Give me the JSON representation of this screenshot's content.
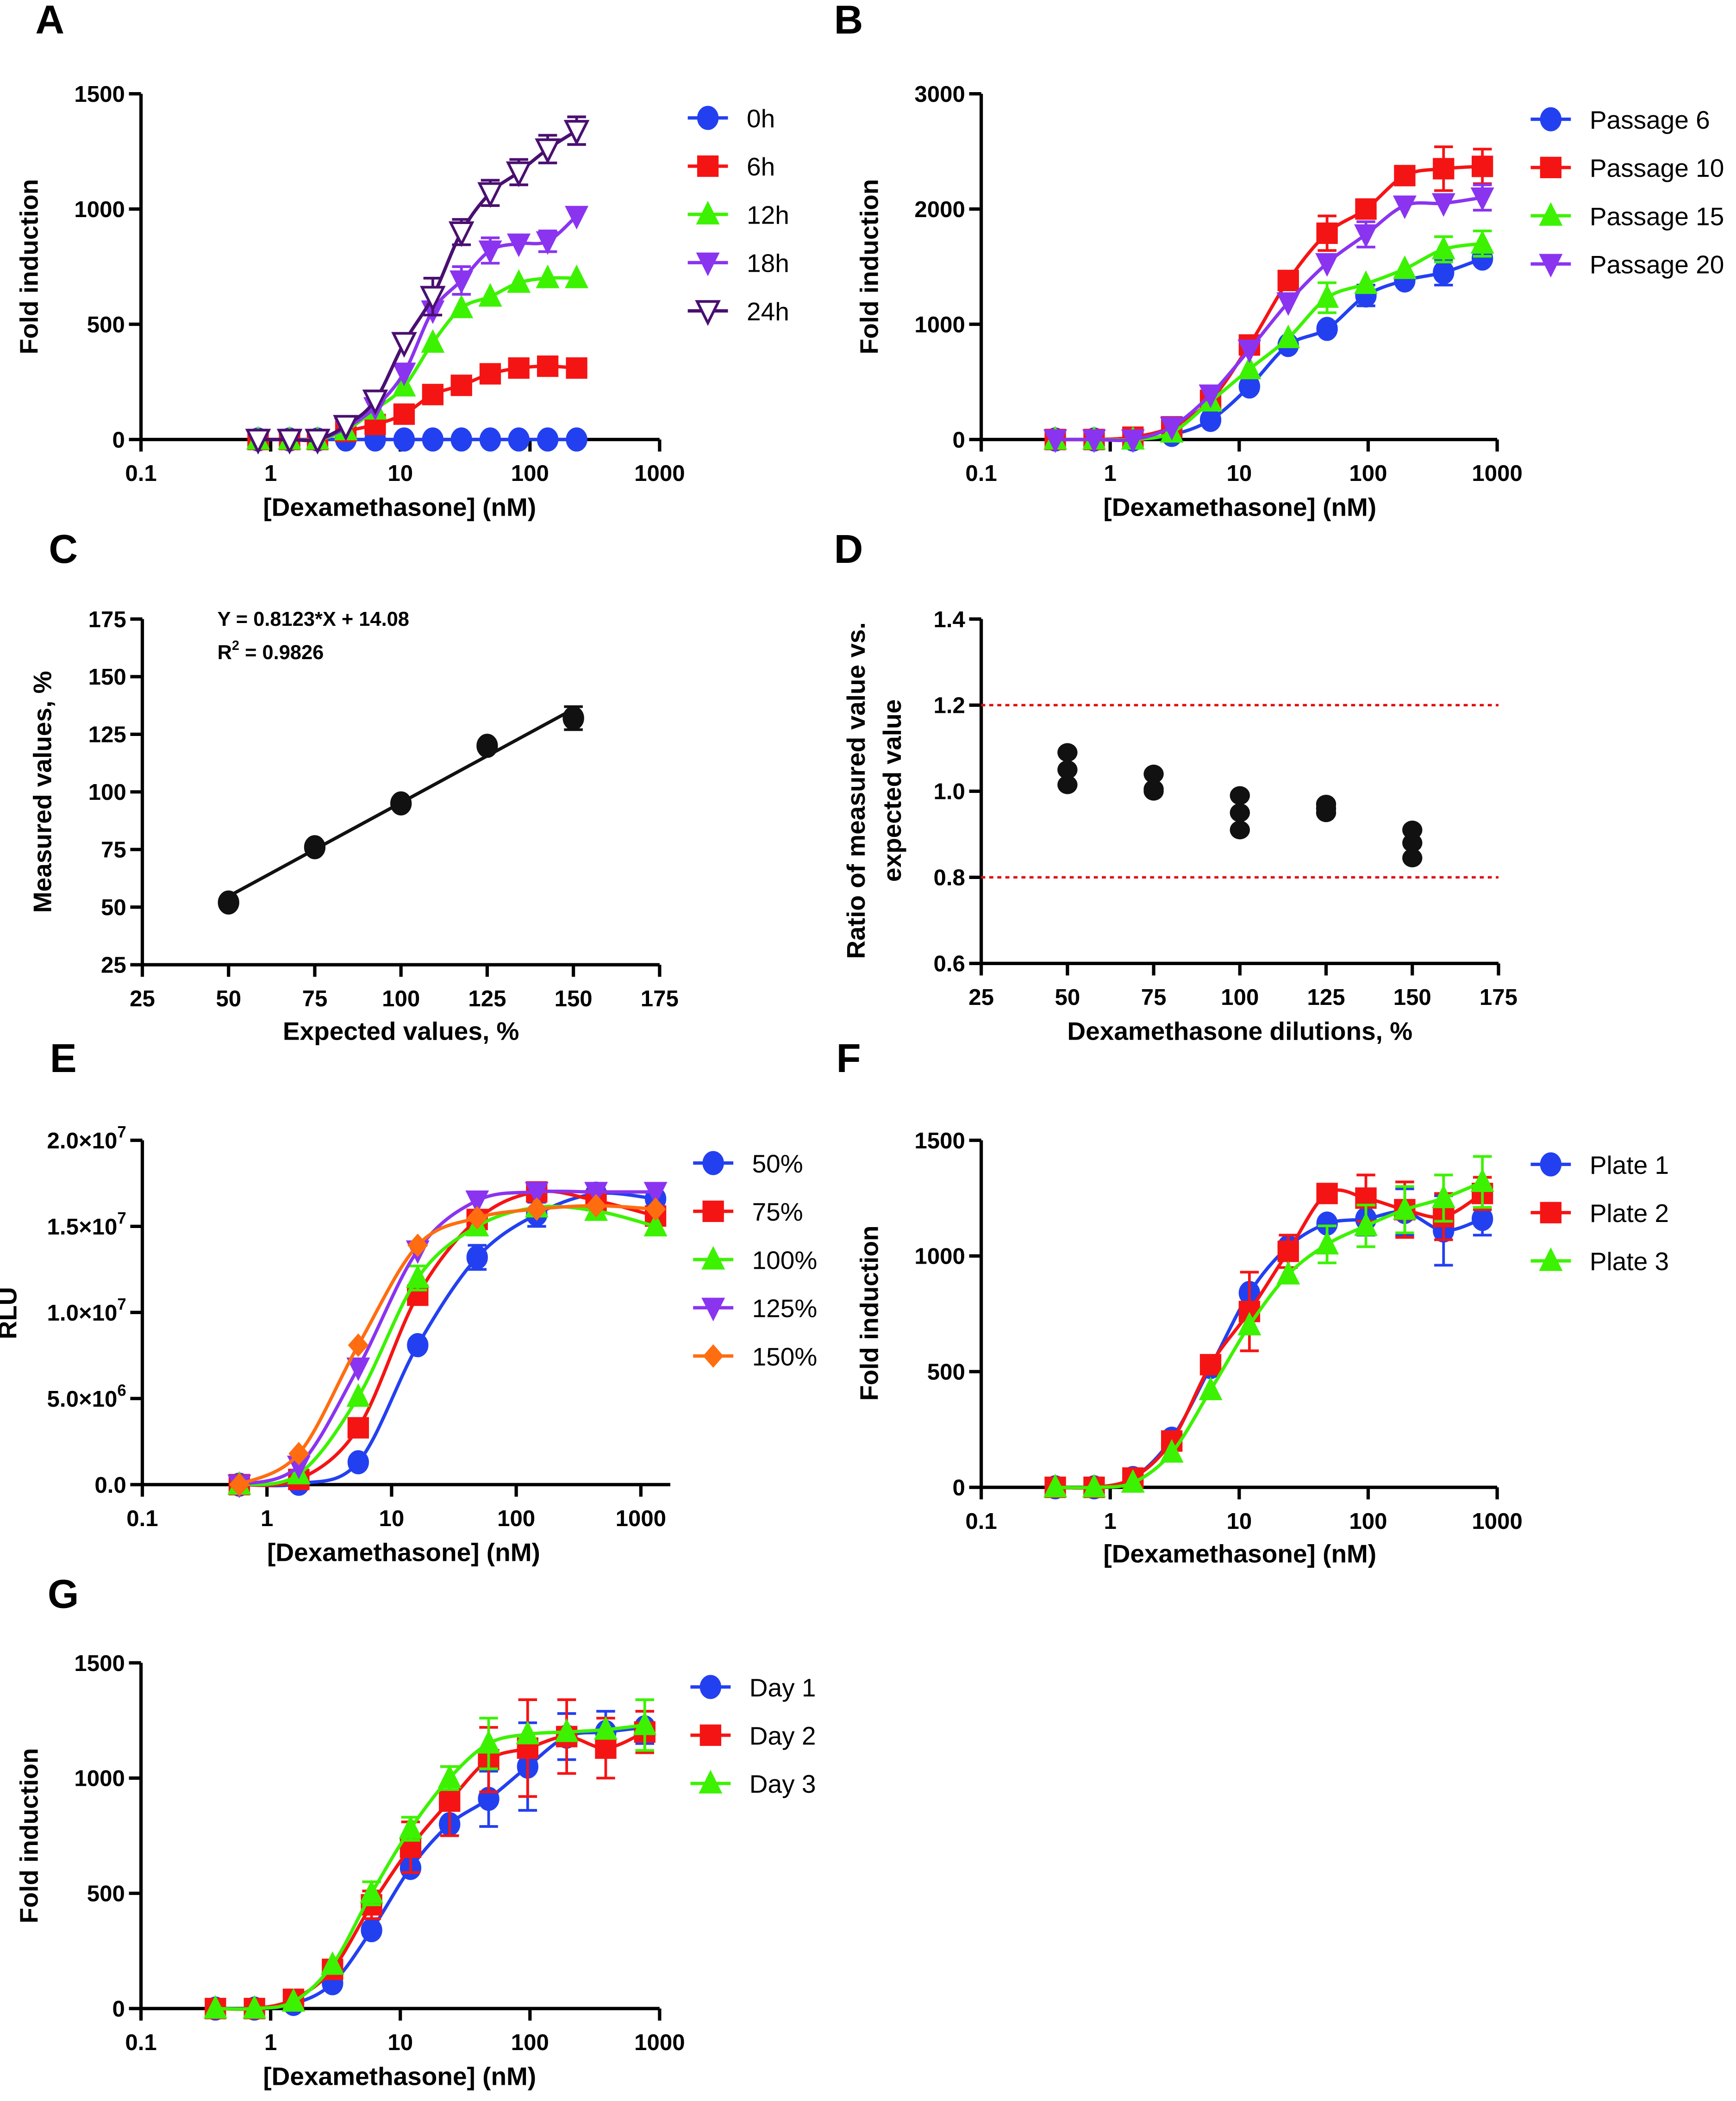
{
  "colors": {
    "blue": "#2340f0",
    "red": "#f51414",
    "green": "#3cf200",
    "purple": "#8a34f0",
    "dark_purple": "#4a0f70",
    "orange": "#ff6d10",
    "black": "#111111",
    "ref_line": "#e01010"
  },
  "chart_data": [
    {
      "panel_label": "A",
      "type": "line",
      "xscale": "log",
      "xlim": [
        0.1,
        1000
      ],
      "ylim": [
        0,
        1500
      ],
      "xlabel": "[Dexamethasone] (nM)",
      "ylabel": "Fold induction",
      "xticks": [
        0.1,
        1,
        10,
        100,
        1000
      ],
      "xtick_labels": [
        "0.1",
        "1",
        "10",
        "100",
        "1000"
      ],
      "yticks": [
        0,
        500,
        1000,
        1500
      ],
      "ytick_labels": [
        "0",
        "500",
        "1000",
        "1500"
      ],
      "legend": "right",
      "x": [
        0.8,
        1.4,
        2.3,
        3.8,
        6.4,
        10.7,
        17.8,
        29.6,
        49.4,
        82,
        137,
        229
      ],
      "series": [
        {
          "name": "0h",
          "color": "blue",
          "marker": "circle",
          "values": [
            0,
            0,
            0,
            0,
            0,
            0,
            0,
            0,
            0,
            0,
            0,
            0
          ]
        },
        {
          "name": "6h",
          "color": "red",
          "marker": "square",
          "values": [
            0,
            0,
            0,
            35,
            65,
            110,
            195,
            235,
            285,
            310,
            318,
            310
          ]
        },
        {
          "name": "12h",
          "color": "green",
          "marker": "triangle-up",
          "values": [
            0,
            0,
            0,
            40,
            130,
            230,
            420,
            570,
            620,
            680,
            700,
            700
          ]
        },
        {
          "name": "18h",
          "color": "purple",
          "marker": "triangle-down",
          "values": [
            0,
            0,
            0,
            50,
            140,
            290,
            560,
            690,
            820,
            850,
            860,
            970
          ],
          "error": [
            0,
            0,
            0,
            0,
            0,
            0,
            0,
            60,
            55,
            0,
            45,
            0
          ]
        },
        {
          "name": "24h",
          "color": "dark_purple",
          "marker": "triangle-down-open",
          "values": [
            0,
            0,
            0,
            60,
            170,
            420,
            620,
            900,
            1070,
            1160,
            1260,
            1340
          ],
          "error": [
            0,
            0,
            0,
            0,
            0,
            0,
            80,
            55,
            55,
            55,
            60,
            60
          ]
        }
      ]
    },
    {
      "panel_label": "B",
      "type": "line",
      "xscale": "log",
      "xlim": [
        0.1,
        1000
      ],
      "ylim": [
        0,
        3000
      ],
      "xlabel": "[Dexamethasone] (nM)",
      "ylabel": "Fold induction",
      "xticks": [
        0.1,
        1,
        10,
        100,
        1000
      ],
      "xtick_labels": [
        "0.1",
        "1",
        "10",
        "100",
        "1000"
      ],
      "yticks": [
        0,
        1000,
        2000,
        3000
      ],
      "ytick_labels": [
        "0",
        "1000",
        "2000",
        "3000"
      ],
      "legend": "right",
      "x": [
        0.375,
        0.75,
        1.5,
        3,
        6,
        12,
        24,
        48,
        96,
        192,
        384,
        768
      ],
      "series": [
        {
          "name": "Passage 6",
          "color": "blue",
          "marker": "circle",
          "values": [
            0,
            0,
            0,
            40,
            170,
            460,
            820,
            960,
            1250,
            1380,
            1450,
            1570
          ],
          "error": [
            0,
            0,
            0,
            0,
            0,
            0,
            0,
            0,
            90,
            0,
            110,
            0
          ]
        },
        {
          "name": "Passage 10",
          "color": "red",
          "marker": "square",
          "values": [
            0,
            0,
            20,
            110,
            340,
            820,
            1380,
            1790,
            2000,
            2290,
            2350,
            2370
          ],
          "error": [
            0,
            0,
            0,
            0,
            0,
            60,
            0,
            150,
            80,
            0,
            190,
            150
          ]
        },
        {
          "name": "Passage 15",
          "color": "green",
          "marker": "triangle-up",
          "values": [
            0,
            0,
            0,
            60,
            330,
            610,
            880,
            1230,
            1350,
            1480,
            1650,
            1700
          ],
          "error": [
            0,
            0,
            0,
            0,
            0,
            0,
            0,
            130,
            0,
            0,
            110,
            110
          ]
        },
        {
          "name": "Passage 20",
          "color": "purple",
          "marker": "triangle-down",
          "values": [
            0,
            0,
            0,
            110,
            390,
            780,
            1190,
            1530,
            1780,
            2030,
            2050,
            2100
          ],
          "error": [
            0,
            0,
            0,
            0,
            0,
            0,
            0,
            0,
            110,
            0,
            0,
            110
          ]
        }
      ]
    },
    {
      "panel_label": "C",
      "type": "scatter",
      "xlim": [
        25,
        175
      ],
      "ylim": [
        25,
        175
      ],
      "xlabel": "Expected values, %",
      "ylabel": "Measured values, %",
      "xticks": [
        25,
        50,
        75,
        100,
        125,
        150,
        175
      ],
      "xtick_labels": [
        "25",
        "50",
        "75",
        "100",
        "125",
        "150",
        "175"
      ],
      "yticks": [
        25,
        50,
        75,
        100,
        125,
        150,
        175
      ],
      "ytick_labels": [
        "25",
        "50",
        "75",
        "100",
        "125",
        "150",
        "175"
      ],
      "x": [
        50,
        75,
        100,
        125,
        150
      ],
      "series": [
        {
          "color": "black",
          "marker": "circle",
          "values": [
            52,
            76,
            95,
            120,
            132
          ],
          "error": [
            0,
            0,
            0,
            0,
            5
          ]
        }
      ],
      "fit": {
        "slope": 0.8123,
        "intercept": 14.08,
        "x_range": [
          50,
          150
        ]
      },
      "annotations": {
        "equation": "Y = 0.8123*X + 14.08",
        "r2_prefix": "R",
        "r2_sup": "2",
        "r2_value": " = 0.9826"
      }
    },
    {
      "panel_label": "D",
      "type": "scatter",
      "xlim": [
        25,
        175
      ],
      "ylim": [
        0.6,
        1.4
      ],
      "xlabel": "Dexamethasone dilutions, %",
      "ylabel_lines": [
        "Ratio of measured value vs.",
        "expected value"
      ],
      "xticks": [
        25,
        50,
        75,
        100,
        125,
        150,
        175
      ],
      "xtick_labels": [
        "25",
        "50",
        "75",
        "100",
        "125",
        "150",
        "175"
      ],
      "yticks": [
        0.6,
        0.8,
        1.0,
        1.2,
        1.4
      ],
      "ytick_labels": [
        "0.6",
        "0.8",
        "1.0",
        "1.2",
        "1.4"
      ],
      "points": [
        {
          "x": 50,
          "y": 1.09
        },
        {
          "x": 50,
          "y": 1.05
        },
        {
          "x": 50,
          "y": 1.015
        },
        {
          "x": 75,
          "y": 1.04
        },
        {
          "x": 75,
          "y": 1.005
        },
        {
          "x": 75,
          "y": 1.0
        },
        {
          "x": 100,
          "y": 0.99
        },
        {
          "x": 100,
          "y": 0.95
        },
        {
          "x": 100,
          "y": 0.91
        },
        {
          "x": 125,
          "y": 0.97
        },
        {
          "x": 125,
          "y": 0.96
        },
        {
          "x": 125,
          "y": 0.95
        },
        {
          "x": 150,
          "y": 0.91
        },
        {
          "x": 150,
          "y": 0.88
        },
        {
          "x": 150,
          "y": 0.845
        }
      ],
      "reference_lines": [
        0.8,
        1.2
      ]
    },
    {
      "panel_label": "E",
      "type": "line",
      "xscale": "log",
      "xlim": [
        0.1,
        1000
      ],
      "ylim": [
        0,
        20000000
      ],
      "xlabel": "[Dexamethasone] (nM)",
      "ylabel": "RLU",
      "xticks": [
        0.1,
        1,
        10,
        100,
        1000
      ],
      "xtick_labels": [
        "0.1",
        "1",
        "10",
        "100",
        "1000"
      ],
      "yticks": [
        0,
        5000000,
        10000000,
        15000000,
        20000000
      ],
      "ytick_labels": [
        {
          "text": "0.0",
          "sup": ""
        },
        {
          "text": "5.0×10",
          "sup": "6"
        },
        {
          "text": "1.0×10",
          "sup": "7"
        },
        {
          "text": "1.5×10",
          "sup": "7"
        },
        {
          "text": "2.0×10",
          "sup": "7"
        }
      ],
      "legend": "right",
      "x": [
        0.6,
        1.8,
        5.4,
        16.2,
        48.6,
        146,
        437,
        1312
      ],
      "series": [
        {
          "name": "50%",
          "color": "blue",
          "marker": "circle",
          "values": [
            0,
            50000,
            1300000,
            8100000,
            13200000,
            15700000,
            16900000,
            16600000
          ],
          "error": [
            0,
            0,
            0,
            0,
            700000,
            700000,
            0,
            0
          ]
        },
        {
          "name": "75%",
          "color": "red",
          "marker": "square",
          "values": [
            0,
            300000,
            3300000,
            11000000,
            15400000,
            17000000,
            16500000,
            15600000
          ]
        },
        {
          "name": "100%",
          "color": "green",
          "marker": "triangle-up",
          "values": [
            0,
            600000,
            5100000,
            12000000,
            15000000,
            16100000,
            15900000,
            15000000
          ],
          "error": [
            0,
            0,
            0,
            700000,
            0,
            0,
            0,
            0
          ]
        },
        {
          "name": "125%",
          "color": "purple",
          "marker": "triangle-down",
          "values": [
            0,
            1100000,
            6800000,
            13600000,
            16500000,
            17000000,
            17000000,
            17000000
          ]
        },
        {
          "name": "150%",
          "color": "orange",
          "marker": "diamond",
          "values": [
            0,
            1800000,
            8100000,
            13900000,
            15500000,
            16000000,
            16200000,
            16000000
          ]
        }
      ]
    },
    {
      "panel_label": "F",
      "type": "line",
      "xscale": "log",
      "xlim": [
        0.1,
        1000
      ],
      "ylim": [
        0,
        1500
      ],
      "xlabel": "[Dexamethasone] (nM)",
      "ylabel": "Fold induction",
      "xticks": [
        0.1,
        1,
        10,
        100,
        1000
      ],
      "xtick_labels": [
        "0.1",
        "1",
        "10",
        "100",
        "1000"
      ],
      "yticks": [
        0,
        500,
        1000,
        1500
      ],
      "ytick_labels": [
        "0",
        "500",
        "1000",
        "1500"
      ],
      "legend": "right",
      "x": [
        0.375,
        0.75,
        1.5,
        3,
        6,
        12,
        24,
        48,
        96,
        192,
        384,
        768
      ],
      "series": [
        {
          "name": "Plate 1",
          "color": "blue",
          "marker": "circle",
          "values": [
            0,
            0,
            40,
            210,
            520,
            840,
            1040,
            1140,
            1160,
            1190,
            1110,
            1160
          ],
          "error": [
            0,
            0,
            0,
            0,
            0,
            0,
            0,
            0,
            70,
            100,
            150,
            70
          ]
        },
        {
          "name": "Plate 2",
          "color": "red",
          "marker": "square",
          "values": [
            0,
            0,
            40,
            200,
            530,
            760,
            1020,
            1270,
            1250,
            1200,
            1170,
            1270
          ],
          "error": [
            0,
            0,
            0,
            0,
            0,
            170,
            70,
            0,
            100,
            120,
            100,
            70
          ]
        },
        {
          "name": "Plate 3",
          "color": "green",
          "marker": "triangle-up",
          "values": [
            0,
            0,
            20,
            150,
            420,
            700,
            920,
            1050,
            1130,
            1200,
            1250,
            1320
          ],
          "error": [
            0,
            0,
            0,
            0,
            0,
            0,
            0,
            80,
            90,
            100,
            100,
            110
          ]
        }
      ]
    },
    {
      "panel_label": "G",
      "type": "line",
      "xscale": "log",
      "xlim": [
        0.1,
        1000
      ],
      "ylim": [
        0,
        1500
      ],
      "xlabel": "[Dexamethasone] (nM)",
      "ylabel": "Fold induction",
      "xticks": [
        0.1,
        1,
        10,
        100,
        1000
      ],
      "xtick_labels": [
        "0.1",
        "1",
        "10",
        "100",
        "1000"
      ],
      "yticks": [
        0,
        500,
        1000,
        1500
      ],
      "ytick_labels": [
        "0",
        "500",
        "1000",
        "1500"
      ],
      "legend": "right",
      "x": [
        0.375,
        0.75,
        1.5,
        3,
        6,
        12,
        24,
        48,
        96,
        192,
        384,
        768
      ],
      "series": [
        {
          "name": "Day 1",
          "color": "blue",
          "marker": "circle",
          "values": [
            0,
            0,
            20,
            110,
            340,
            610,
            800,
            910,
            1050,
            1180,
            1200,
            1220
          ],
          "error": [
            0,
            0,
            0,
            0,
            0,
            0,
            0,
            120,
            190,
            100,
            90,
            70
          ]
        },
        {
          "name": "Day 2",
          "color": "red",
          "marker": "square",
          "values": [
            0,
            0,
            40,
            170,
            450,
            700,
            900,
            1080,
            1130,
            1180,
            1130,
            1200
          ],
          "error": [
            0,
            0,
            0,
            0,
            60,
            110,
            150,
            140,
            210,
            160,
            130,
            90
          ]
        },
        {
          "name": "Day 3",
          "color": "green",
          "marker": "triangle-up",
          "values": [
            0,
            0,
            30,
            190,
            500,
            780,
            1000,
            1150,
            1190,
            1200,
            1210,
            1230
          ],
          "error": [
            0,
            0,
            0,
            0,
            50,
            50,
            50,
            110,
            0,
            0,
            0,
            110
          ]
        }
      ]
    }
  ]
}
